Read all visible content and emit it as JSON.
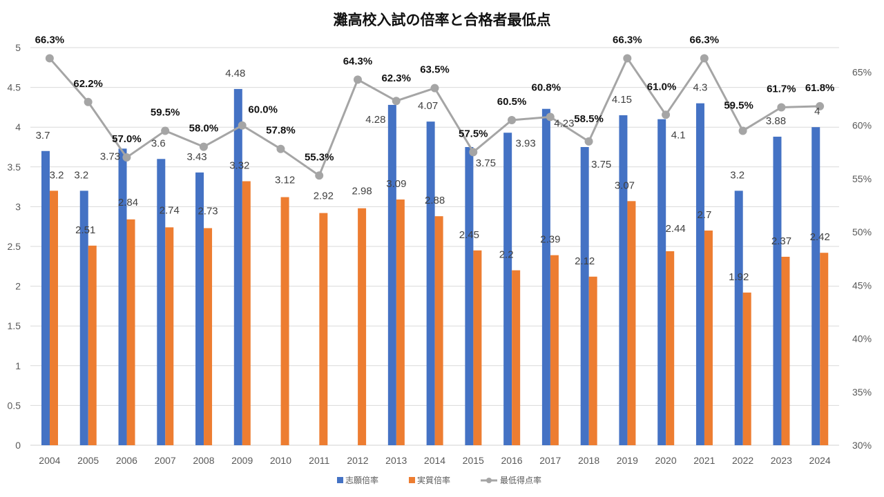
{
  "chart_data": {
    "type": "bar",
    "title": "灘高校入試の倍率と合格者最低点",
    "xlabel": "",
    "ylabel": "",
    "categories": [
      "2004",
      "2005",
      "2006",
      "2007",
      "2008",
      "2009",
      "2010",
      "2011",
      "2012",
      "2013",
      "2014",
      "2015",
      "2016",
      "2017",
      "2018",
      "2019",
      "2020",
      "2021",
      "2022",
      "2023",
      "2024"
    ],
    "series": [
      {
        "name": "志願倍率",
        "type": "bar",
        "axis": "left",
        "color": "#4472C4",
        "values": [
          3.7,
          3.2,
          3.73,
          3.6,
          3.43,
          4.48,
          null,
          null,
          null,
          4.28,
          4.07,
          3.75,
          3.93,
          4.23,
          3.75,
          4.15,
          4.1,
          4.3,
          3.2,
          3.88,
          4
        ],
        "labels": [
          "3.7",
          "3.2",
          "3.73",
          "3.6",
          "3.43",
          "4.48",
          "",
          "",
          "",
          "4.28",
          "4.07",
          "3.75",
          "3.93",
          "4.23",
          "3.75",
          "4.15",
          "4.1",
          "4.3",
          "3.2",
          "3.88",
          "4"
        ]
      },
      {
        "name": "実質倍率",
        "type": "bar",
        "axis": "left",
        "color": "#ED7D31",
        "values": [
          3.2,
          2.51,
          2.84,
          2.74,
          2.73,
          3.32,
          3.12,
          2.92,
          2.98,
          3.09,
          2.88,
          2.45,
          2.2,
          2.39,
          2.12,
          3.07,
          2.44,
          2.7,
          1.92,
          2.37,
          2.42
        ],
        "labels": [
          "3.2",
          "2.51",
          "2.84",
          "2.74",
          "2.73",
          "3.32",
          "3.12",
          "2.92",
          "2.98",
          "3.09",
          "2.88",
          "2.45",
          "2.2",
          "2.39",
          "2.12",
          "3.07",
          "2.44",
          "2.7",
          "1.92",
          "2.37",
          "2.42"
        ]
      },
      {
        "name": "最低得点率",
        "type": "line",
        "axis": "right",
        "color": "#A5A5A5",
        "values": [
          66.3,
          62.2,
          57.0,
          59.5,
          58.0,
          60.0,
          57.8,
          55.3,
          64.3,
          62.3,
          63.5,
          57.5,
          60.5,
          60.8,
          58.5,
          66.3,
          61.0,
          66.3,
          59.5,
          61.7,
          61.8
        ],
        "labels": [
          "66.3%",
          "62.2%",
          "57.0%",
          "59.5%",
          "58.0%",
          "60.0%",
          "57.8%",
          "55.3%",
          "64.3%",
          "62.3%",
          "63.5%",
          "57.5%",
          "60.5%",
          "60.8%",
          "58.5%",
          "66.3%",
          "61.0%",
          "66.3%",
          "59.5%",
          "61.7%",
          "61.8%"
        ]
      }
    ],
    "y_left": {
      "ylim": [
        0,
        5
      ],
      "ticks": [
        "0",
        "0.5",
        "1",
        "1.5",
        "2",
        "2.5",
        "3",
        "3.5",
        "4",
        "4.5",
        "5"
      ],
      "tick_values": [
        0,
        0.5,
        1,
        1.5,
        2,
        2.5,
        3,
        3.5,
        4,
        4.5,
        5
      ]
    },
    "y_right": {
      "ylim": [
        30,
        67.3
      ],
      "ticks": [
        "30%",
        "35%",
        "40%",
        "45%",
        "50%",
        "55%",
        "60%",
        "65%"
      ],
      "tick_values": [
        30,
        35,
        40,
        45,
        50,
        55,
        60,
        65
      ]
    },
    "grid": true,
    "legend": {
      "position": "bottom",
      "entries": [
        "志願倍率",
        "実質倍率",
        "最低得点率"
      ]
    }
  }
}
